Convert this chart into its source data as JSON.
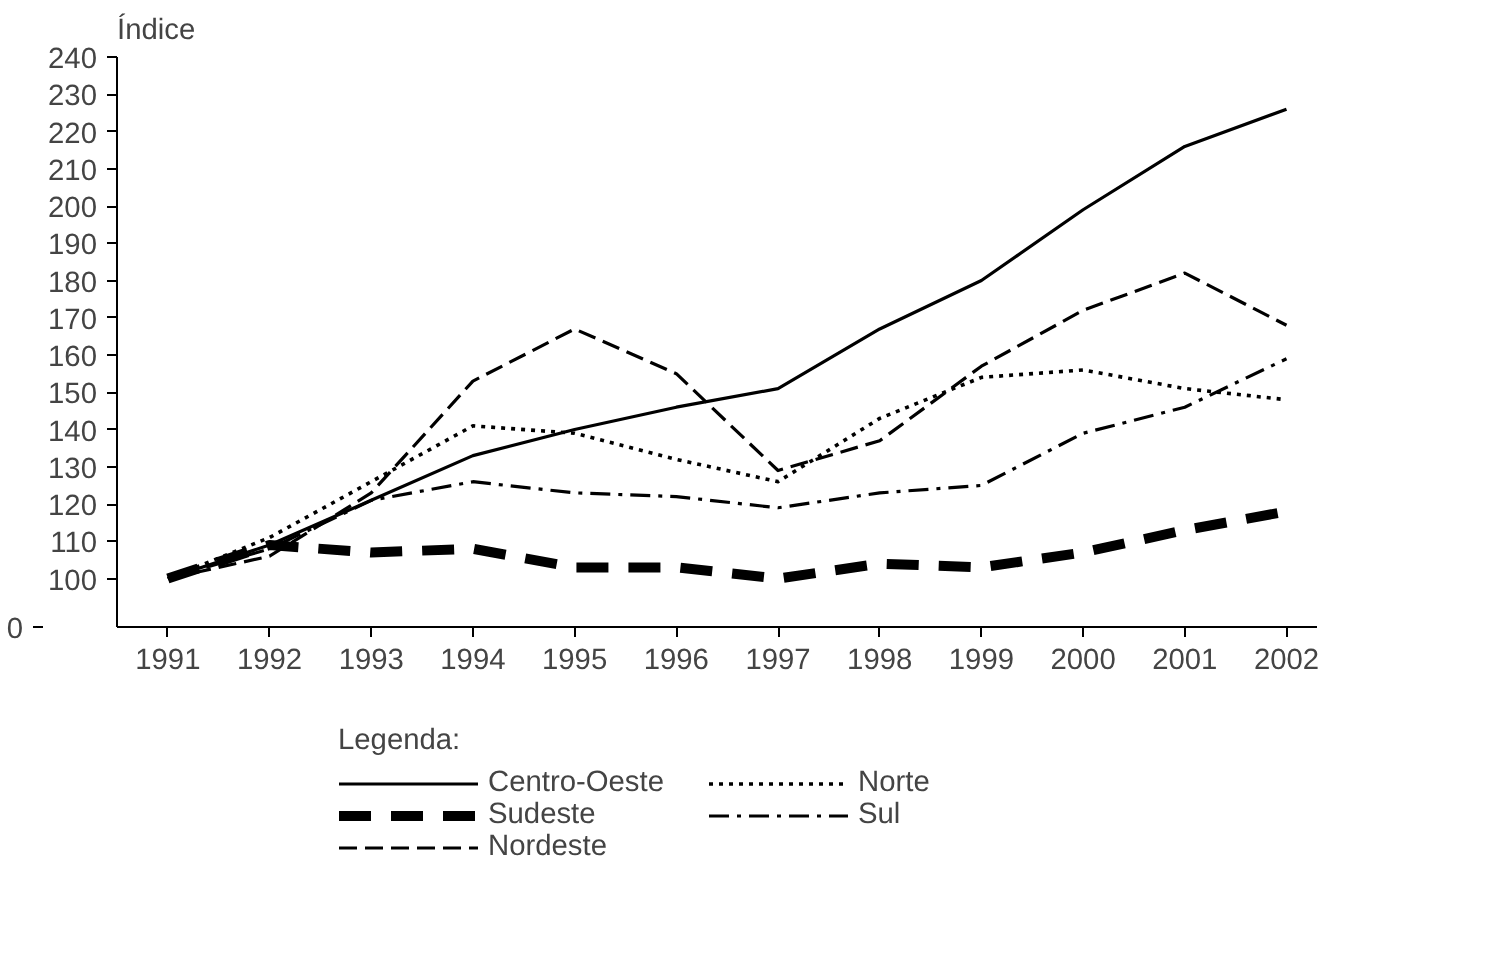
{
  "chart_data": {
    "type": "line",
    "ylabel": "Índice",
    "legend_title": "Legenda:",
    "legend": "bottom",
    "grid": false,
    "marker": "none",
    "x": [
      1991,
      1992,
      1993,
      1994,
      1995,
      1996,
      1997,
      1998,
      1999,
      2000,
      2001,
      2002
    ],
    "xlim": [
      1990.5,
      2002.3
    ],
    "xticks": [
      1991,
      1992,
      1993,
      1994,
      1995,
      1996,
      1997,
      1998,
      1999,
      2000,
      2001,
      2002
    ],
    "annotations": [
      "0"
    ],
    "ylim": [
      87,
      240
    ],
    "yticks": [
      100,
      110,
      120,
      130,
      140,
      150,
      160,
      170,
      180,
      190,
      200,
      210,
      220,
      230,
      240
    ],
    "series": [
      {
        "name": "Centro-Oeste",
        "color": "#000000",
        "line_style": "solid",
        "values": [
          100,
          109,
          121,
          133,
          140,
          146,
          151,
          167,
          180,
          199,
          216,
          226
        ]
      },
      {
        "name": "Sudeste",
        "color": "#000000",
        "line_style": "thick-dashed",
        "values": [
          100,
          109,
          107,
          108,
          103,
          103,
          100,
          104,
          103,
          107,
          113,
          118
        ]
      },
      {
        "name": "Nordeste",
        "color": "#000000",
        "line_style": "dashed",
        "values": [
          100,
          106,
          123,
          153,
          167,
          155,
          129,
          137,
          157,
          172,
          182,
          168
        ]
      },
      {
        "name": "Norte",
        "color": "#000000",
        "line_style": "dotted",
        "values": [
          100,
          111,
          126,
          141,
          139,
          132,
          126,
          143,
          154,
          156,
          151,
          148
        ]
      },
      {
        "name": "Sul",
        "color": "#000000",
        "line_style": "dashdot",
        "values": [
          100,
          108,
          121,
          126,
          123,
          122,
          119,
          123,
          125,
          139,
          146,
          159
        ]
      }
    ]
  }
}
